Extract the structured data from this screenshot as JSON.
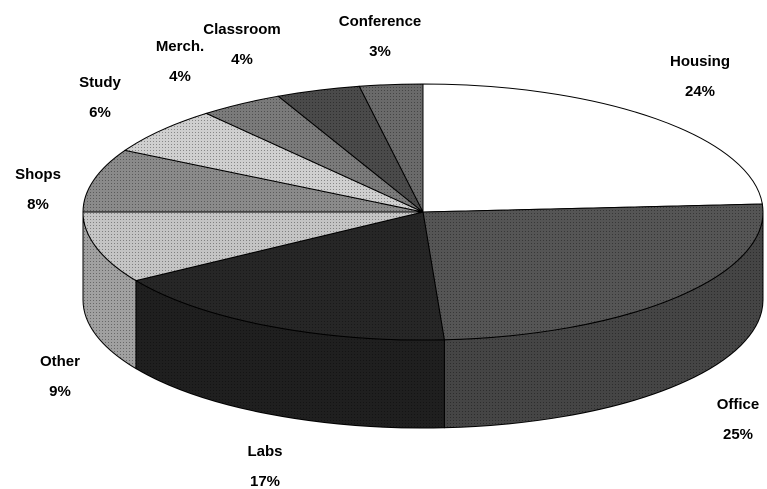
{
  "chart_data": {
    "type": "pie",
    "categories": [
      "Housing",
      "Office",
      "Labs",
      "Other",
      "Shops",
      "Study",
      "Merch.",
      "Classroom",
      "Conference"
    ],
    "values": [
      24,
      25,
      17,
      9,
      8,
      6,
      4,
      4,
      3
    ],
    "value_labels": [
      "24%",
      "25%",
      "17%",
      "9%",
      "8%",
      "6%",
      "4%",
      "4%",
      "3%"
    ],
    "colors": [
      "#ffffff",
      "#555555",
      "#262626",
      "#c4c4c4",
      "#8a8a8a",
      "#cfcfcf",
      "#7a7a7a",
      "#4a4a4a",
      "#6a6a6a"
    ]
  }
}
